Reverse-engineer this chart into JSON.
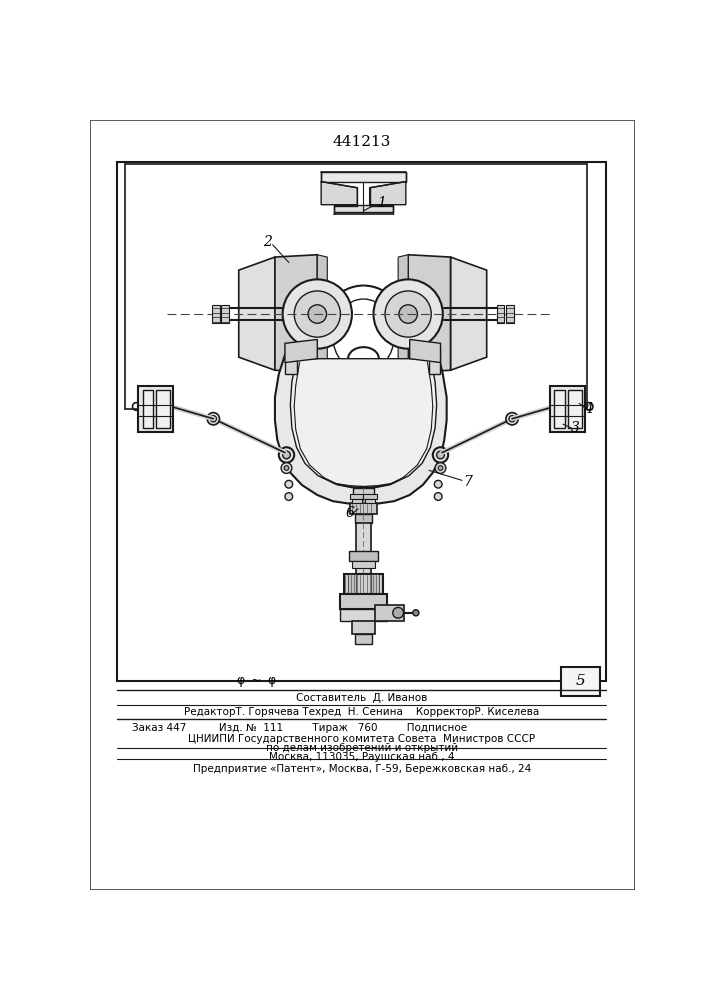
{
  "title": "441213",
  "bg_color": "#ffffff",
  "text_color": "#000000",
  "footer_lines": [
    "Составитель  Д. Иванов",
    "РедакторТ. Горячева Техред  Н. Сенина    КорректорР. Киселева",
    "Заказ 447          Изд. №  111         Тираж   760         Подписное",
    "ЦНИИПИ Государственного комитета Совета  Министров СССР",
    "по делам изобретений и открытий",
    "Москва, 113035, Раушская наб., 4",
    "Предприятие «Патент», Москва, Г-59, Бережковская наб., 24"
  ]
}
